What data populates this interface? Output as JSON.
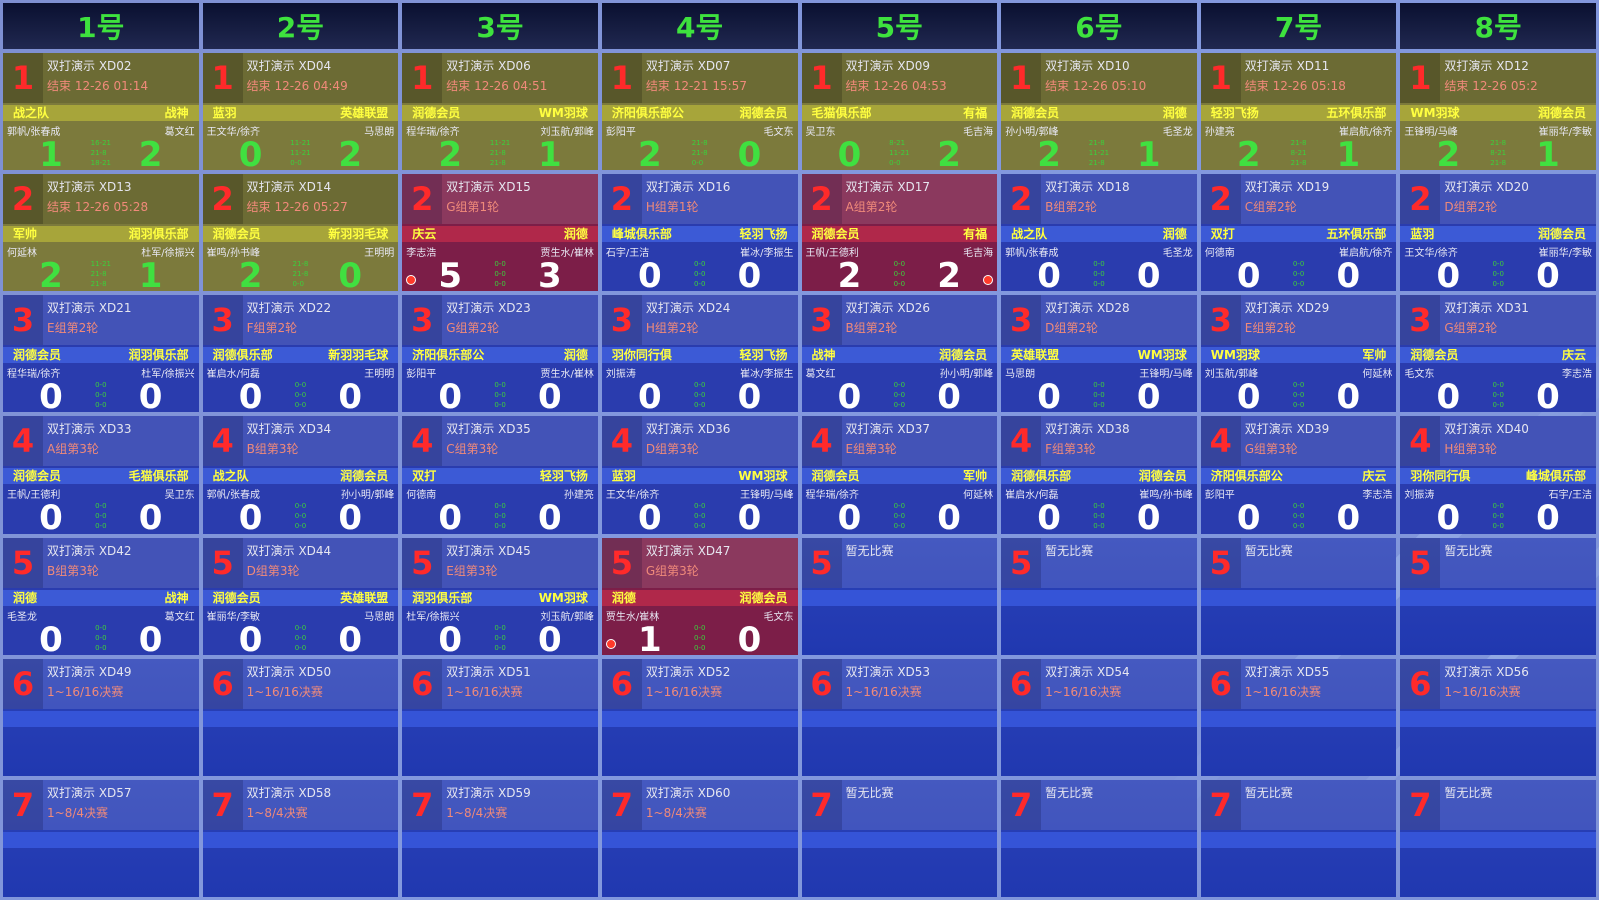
{
  "courts": [
    "1号",
    "2号",
    "3号",
    "4号",
    "5号",
    "6号",
    "7号",
    "8号"
  ],
  "empty_label": "暂无比赛",
  "colors": {
    "done": "#7c7a3c",
    "live": "#7c1e48",
    "pending": "#2a3cae",
    "number": "#ff2a2a",
    "team": "#ffff40",
    "score_done": "#40e040"
  },
  "rows": [
    [
      {
        "state": "done",
        "code": "双打演示 XD02",
        "status": "结束 12-26 01:14",
        "teams": [
          "战之队",
          "战神"
        ],
        "players": [
          "郭帆/张春成",
          "葛文红"
        ],
        "score": [
          1,
          2
        ],
        "sets": [
          "16-21",
          "21-8",
          "18-21"
        ]
      },
      {
        "state": "done",
        "code": "双打演示 XD04",
        "status": "结束 12-26 04:49",
        "teams": [
          "蓝羽",
          "英雄联盟"
        ],
        "players": [
          "王文华/徐齐",
          "马思朗"
        ],
        "score": [
          0,
          2
        ],
        "sets": [
          "11-21",
          "11-21",
          "0-0"
        ]
      },
      {
        "state": "done",
        "code": "双打演示 XD06",
        "status": "结束 12-26 04:51",
        "teams": [
          "润德会员",
          "WM羽球"
        ],
        "players": [
          "程华瑞/徐齐",
          "刘玉航/郭峰"
        ],
        "score": [
          2,
          1
        ],
        "sets": [
          "11-21",
          "21-8",
          "21-8"
        ]
      },
      {
        "state": "done",
        "code": "双打演示 XD07",
        "status": "结束 12-21 15:57",
        "teams": [
          "济阳俱乐部公",
          "润德会员"
        ],
        "players": [
          "彭阳平",
          "毛文东"
        ],
        "score": [
          2,
          0
        ],
        "sets": [
          "21-8",
          "21-8",
          "0-0"
        ]
      },
      {
        "state": "done",
        "code": "双打演示 XD09",
        "status": "结束 12-26 04:53",
        "teams": [
          "毛猫俱乐部",
          "有福"
        ],
        "players": [
          "吴卫东",
          "毛吉海"
        ],
        "score": [
          0,
          2
        ],
        "sets": [
          "8-21",
          "11-21",
          "0-0"
        ]
      },
      {
        "state": "done",
        "code": "双打演示 XD10",
        "status": "结束 12-26 05:10",
        "teams": [
          "润德会员",
          "润德"
        ],
        "players": [
          "孙小明/郭峰",
          "毛圣龙"
        ],
        "score": [
          2,
          1
        ],
        "sets": [
          "21-8",
          "11-21",
          "21-8"
        ]
      },
      {
        "state": "done",
        "code": "双打演示 XD11",
        "status": "结束 12-26 05:18",
        "teams": [
          "轻羽飞扬",
          "五环俱乐部"
        ],
        "players": [
          "孙建亮",
          "崔启航/徐齐"
        ],
        "score": [
          2,
          1
        ],
        "sets": [
          "21-8",
          "8-21",
          "21-8"
        ]
      },
      {
        "state": "done",
        "code": "双打演示 XD12",
        "status": "结束 12-26 05:2",
        "teams": [
          "WM羽球",
          "润德会员"
        ],
        "players": [
          "王锋明/马峰",
          "崔丽华/李敏"
        ],
        "score": [
          2,
          1
        ],
        "sets": [
          "21-8",
          "8-21",
          "21-8"
        ]
      }
    ],
    [
      {
        "state": "done",
        "code": "双打演示 XD13",
        "status": "结束 12-26 05:28",
        "teams": [
          "军帅",
          "润羽俱乐部"
        ],
        "players": [
          "何延林",
          "杜军/徐振兴"
        ],
        "score": [
          2,
          1
        ],
        "sets": [
          "11-21",
          "21-8",
          "21-8"
        ]
      },
      {
        "state": "done",
        "code": "双打演示 XD14",
        "status": "结束 12-26 05:27",
        "teams": [
          "润德会员",
          "新羽羽毛球"
        ],
        "players": [
          "崔鸣/孙书峰",
          "王明明"
        ],
        "score": [
          2,
          0
        ],
        "sets": [
          "21-8",
          "21-8",
          "0-0"
        ]
      },
      {
        "state": "live",
        "code": "双打演示 XD15",
        "status": "G组第1轮",
        "teams": [
          "庆云",
          "润德"
        ],
        "players": [
          "李志浩",
          "贾生水/崔林"
        ],
        "score": [
          5,
          3
        ],
        "sets": [
          "0-0",
          "0-0",
          "0-0"
        ],
        "serve": "left"
      },
      {
        "state": "pending",
        "code": "双打演示 XD16",
        "status": "H组第1轮",
        "teams": [
          "峰城俱乐部",
          "轻羽飞扬"
        ],
        "players": [
          "石宇/王洁",
          "崔冰/李振生"
        ],
        "score": [
          0,
          0
        ],
        "sets": [
          "0-0",
          "0-0",
          "0-0"
        ]
      },
      {
        "state": "live",
        "code": "双打演示 XD17",
        "status": "A组第2轮",
        "teams": [
          "润德会员",
          "有福"
        ],
        "players": [
          "王帆/王德利",
          "毛吉海"
        ],
        "score": [
          2,
          2
        ],
        "sets": [
          "0-0",
          "0-0",
          "0-0"
        ],
        "serve": "right"
      },
      {
        "state": "pending",
        "code": "双打演示 XD18",
        "status": "B组第2轮",
        "teams": [
          "战之队",
          "润德"
        ],
        "players": [
          "郭帆/张春成",
          "毛圣龙"
        ],
        "score": [
          0,
          0
        ],
        "sets": [
          "0-0",
          "0-0",
          "0-0"
        ]
      },
      {
        "state": "pending",
        "code": "双打演示 XD19",
        "status": "C组第2轮",
        "teams": [
          "双打",
          "五环俱乐部"
        ],
        "players": [
          "何德南",
          "崔启航/徐齐"
        ],
        "score": [
          0,
          0
        ],
        "sets": [
          "0-0",
          "0-0",
          "0-0"
        ]
      },
      {
        "state": "pending",
        "code": "双打演示 XD20",
        "status": "D组第2轮",
        "teams": [
          "蓝羽",
          "润德会员"
        ],
        "players": [
          "王文华/徐齐",
          "崔丽华/李敏"
        ],
        "score": [
          0,
          0
        ],
        "sets": [
          "0-0",
          "0-0",
          "0-0"
        ]
      }
    ],
    [
      {
        "state": "pending",
        "code": "双打演示 XD21",
        "status": "E组第2轮",
        "teams": [
          "润德会员",
          "润羽俱乐部"
        ],
        "players": [
          "程华瑞/徐齐",
          "杜军/徐振兴"
        ],
        "score": [
          0,
          0
        ],
        "sets": [
          "0-0",
          "0-0",
          "0-0"
        ]
      },
      {
        "state": "pending",
        "code": "双打演示 XD22",
        "status": "F组第2轮",
        "teams": [
          "润德俱乐部",
          "新羽羽毛球"
        ],
        "players": [
          "崔启水/何磊",
          "王明明"
        ],
        "score": [
          0,
          0
        ],
        "sets": [
          "0-0",
          "0-0",
          "0-0"
        ]
      },
      {
        "state": "pending",
        "code": "双打演示 XD23",
        "status": "G组第2轮",
        "teams": [
          "济阳俱乐部公",
          "润德"
        ],
        "players": [
          "彭阳平",
          "贾生水/崔林"
        ],
        "score": [
          0,
          0
        ],
        "sets": [
          "0-0",
          "0-0",
          "0-0"
        ]
      },
      {
        "state": "pending",
        "code": "双打演示 XD24",
        "status": "H组第2轮",
        "teams": [
          "羽你同行俱",
          "轻羽飞扬"
        ],
        "players": [
          "刘振涛",
          "崔冰/李振生"
        ],
        "score": [
          0,
          0
        ],
        "sets": [
          "0-0",
          "0-0",
          "0-0"
        ]
      },
      {
        "state": "pending",
        "code": "双打演示 XD26",
        "status": "B组第2轮",
        "teams": [
          "战神",
          "润德会员"
        ],
        "players": [
          "葛文红",
          "孙小明/郭峰"
        ],
        "score": [
          0,
          0
        ],
        "sets": [
          "0-0",
          "0-0",
          "0-0"
        ]
      },
      {
        "state": "pending",
        "code": "双打演示 XD28",
        "status": "D组第2轮",
        "teams": [
          "英雄联盟",
          "WM羽球"
        ],
        "players": [
          "马思朗",
          "王锋明/马峰"
        ],
        "score": [
          0,
          0
        ],
        "sets": [
          "0-0",
          "0-0",
          "0-0"
        ]
      },
      {
        "state": "pending",
        "code": "双打演示 XD29",
        "status": "E组第2轮",
        "teams": [
          "WM羽球",
          "军帅"
        ],
        "players": [
          "刘玉航/郭峰",
          "何延林"
        ],
        "score": [
          0,
          0
        ],
        "sets": [
          "0-0",
          "0-0",
          "0-0"
        ]
      },
      {
        "state": "pending",
        "code": "双打演示 XD31",
        "status": "G组第2轮",
        "teams": [
          "润德会员",
          "庆云"
        ],
        "players": [
          "毛文东",
          "李志浩"
        ],
        "score": [
          0,
          0
        ],
        "sets": [
          "0-0",
          "0-0",
          "0-0"
        ]
      }
    ],
    [
      {
        "state": "pending",
        "code": "双打演示 XD33",
        "status": "A组第3轮",
        "teams": [
          "润德会员",
          "毛猫俱乐部"
        ],
        "players": [
          "王帆/王德利",
          "吴卫东"
        ],
        "score": [
          0,
          0
        ],
        "sets": [
          "0-0",
          "0-0",
          "0-0"
        ]
      },
      {
        "state": "pending",
        "code": "双打演示 XD34",
        "status": "B组第3轮",
        "teams": [
          "战之队",
          "润德会员"
        ],
        "players": [
          "郭帆/张春成",
          "孙小明/郭峰"
        ],
        "score": [
          0,
          0
        ],
        "sets": [
          "0-0",
          "0-0",
          "0-0"
        ]
      },
      {
        "state": "pending",
        "code": "双打演示 XD35",
        "status": "C组第3轮",
        "teams": [
          "双打",
          "轻羽飞扬"
        ],
        "players": [
          "何德南",
          "孙建亮"
        ],
        "score": [
          0,
          0
        ],
        "sets": [
          "0-0",
          "0-0",
          "0-0"
        ]
      },
      {
        "state": "pending",
        "code": "双打演示 XD36",
        "status": "D组第3轮",
        "teams": [
          "蓝羽",
          "WM羽球"
        ],
        "players": [
          "王文华/徐齐",
          "王锋明/马峰"
        ],
        "score": [
          0,
          0
        ],
        "sets": [
          "0-0",
          "0-0",
          "0-0"
        ]
      },
      {
        "state": "pending",
        "code": "双打演示 XD37",
        "status": "E组第3轮",
        "teams": [
          "润德会员",
          "军帅"
        ],
        "players": [
          "程华瑞/徐齐",
          "何延林"
        ],
        "score": [
          0,
          0
        ],
        "sets": [
          "0-0",
          "0-0",
          "0-0"
        ]
      },
      {
        "state": "pending",
        "code": "双打演示 XD38",
        "status": "F组第3轮",
        "teams": [
          "润德俱乐部",
          "润德会员"
        ],
        "players": [
          "崔启水/何磊",
          "崔鸣/孙书峰"
        ],
        "score": [
          0,
          0
        ],
        "sets": [
          "0-0",
          "0-0",
          "0-0"
        ]
      },
      {
        "state": "pending",
        "code": "双打演示 XD39",
        "status": "G组第3轮",
        "teams": [
          "济阳俱乐部公",
          "庆云"
        ],
        "players": [
          "彭阳平",
          "李志浩"
        ],
        "score": [
          0,
          0
        ],
        "sets": [
          "0-0",
          "0-0",
          "0-0"
        ]
      },
      {
        "state": "pending",
        "code": "双打演示 XD40",
        "status": "H组第3轮",
        "teams": [
          "羽你同行俱",
          "峰城俱乐部"
        ],
        "players": [
          "刘振涛",
          "石宇/王洁"
        ],
        "score": [
          0,
          0
        ],
        "sets": [
          "0-0",
          "0-0",
          "0-0"
        ]
      }
    ],
    [
      {
        "state": "pending",
        "code": "双打演示 XD42",
        "status": "B组第3轮",
        "teams": [
          "润德",
          "战神"
        ],
        "players": [
          "毛圣龙",
          "葛文红"
        ],
        "score": [
          0,
          0
        ],
        "sets": [
          "0-0",
          "0-0",
          "0-0"
        ]
      },
      {
        "state": "pending",
        "code": "双打演示 XD44",
        "status": "D组第3轮",
        "teams": [
          "润德会员",
          "英雄联盟"
        ],
        "players": [
          "崔丽华/李敏",
          "马思朗"
        ],
        "score": [
          0,
          0
        ],
        "sets": [
          "0-0",
          "0-0",
          "0-0"
        ]
      },
      {
        "state": "pending",
        "code": "双打演示 XD45",
        "status": "E组第3轮",
        "teams": [
          "润羽俱乐部",
          "WM羽球"
        ],
        "players": [
          "杜军/徐振兴",
          "刘玉航/郭峰"
        ],
        "score": [
          0,
          0
        ],
        "sets": [
          "0-0",
          "0-0",
          "0-0"
        ]
      },
      {
        "state": "live",
        "code": "双打演示 XD47",
        "status": "G组第3轮",
        "teams": [
          "润德",
          "润德会员"
        ],
        "players": [
          "贾生水/崔林",
          "毛文东"
        ],
        "score": [
          1,
          0
        ],
        "sets": [
          "0-0",
          "0-0",
          "0-0"
        ],
        "serve": "left"
      },
      {
        "state": "empty"
      },
      {
        "state": "empty"
      },
      {
        "state": "empty"
      },
      {
        "state": "empty"
      }
    ],
    [
      {
        "state": "sched",
        "code": "双打演示 XD49",
        "status": "1~16/16决赛"
      },
      {
        "state": "sched",
        "code": "双打演示 XD50",
        "status": "1~16/16决赛"
      },
      {
        "state": "sched",
        "code": "双打演示 XD51",
        "status": "1~16/16决赛"
      },
      {
        "state": "sched",
        "code": "双打演示 XD52",
        "status": "1~16/16决赛"
      },
      {
        "state": "sched",
        "code": "双打演示 XD53",
        "status": "1~16/16决赛"
      },
      {
        "state": "sched",
        "code": "双打演示 XD54",
        "status": "1~16/16决赛"
      },
      {
        "state": "sched",
        "code": "双打演示 XD55",
        "status": "1~16/16决赛"
      },
      {
        "state": "sched",
        "code": "双打演示 XD56",
        "status": "1~16/16决赛"
      }
    ],
    [
      {
        "state": "sched",
        "code": "双打演示 XD57",
        "status": "1~8/4决赛"
      },
      {
        "state": "sched",
        "code": "双打演示 XD58",
        "status": "1~8/4决赛"
      },
      {
        "state": "sched",
        "code": "双打演示 XD59",
        "status": "1~8/4决赛"
      },
      {
        "state": "sched",
        "code": "双打演示 XD60",
        "status": "1~8/4决赛"
      },
      {
        "state": "empty"
      },
      {
        "state": "empty"
      },
      {
        "state": "empty"
      },
      {
        "state": "empty"
      }
    ]
  ]
}
